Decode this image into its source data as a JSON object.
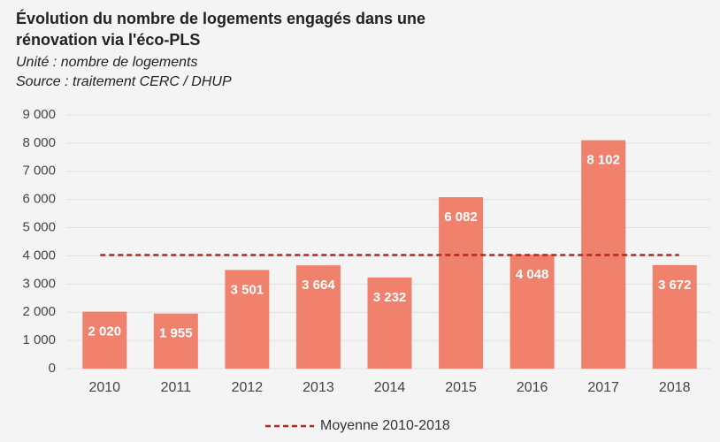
{
  "chart_data": {
    "type": "bar",
    "title": [
      "Évolution du nombre de logements engagés dans une",
      "rénovation via l'éco-PLS"
    ],
    "subtitle": [
      "Unité : nombre de logements",
      "Source : traitement CERC / DHUP"
    ],
    "categories": [
      "2010",
      "2011",
      "2012",
      "2013",
      "2014",
      "2015",
      "2016",
      "2017",
      "2018"
    ],
    "values": [
      2020,
      1955,
      3501,
      3664,
      3232,
      6082,
      4048,
      8102,
      3672
    ],
    "value_labels": [
      "2 020",
      "1 955",
      "3 501",
      "3 664",
      "3 232",
      "6 082",
      "4 048",
      "8 102",
      "3 672"
    ],
    "color": "#f0826d",
    "reference_line": {
      "name": "Moyenne 2010-2018",
      "value": 4031,
      "color": "#b5261e"
    },
    "ylim": [
      0,
      9000
    ],
    "yticks": [
      0,
      {
        "value": 1000,
        "label": "1 000"
      },
      {
        "value": 2000,
        "label": "2 000"
      },
      {
        "value": 3000,
        "label": "3 000"
      },
      {
        "value": 4000,
        "label": "4 000"
      },
      {
        "value": 5000,
        "label": "5 000"
      },
      {
        "value": 6000,
        "label": "6 000"
      },
      {
        "value": 7000,
        "label": "7 000"
      },
      {
        "value": 8000,
        "label": "8 000"
      },
      {
        "value": 9000,
        "label": "9 000"
      }
    ],
    "grid": true,
    "legend": "bottom"
  }
}
